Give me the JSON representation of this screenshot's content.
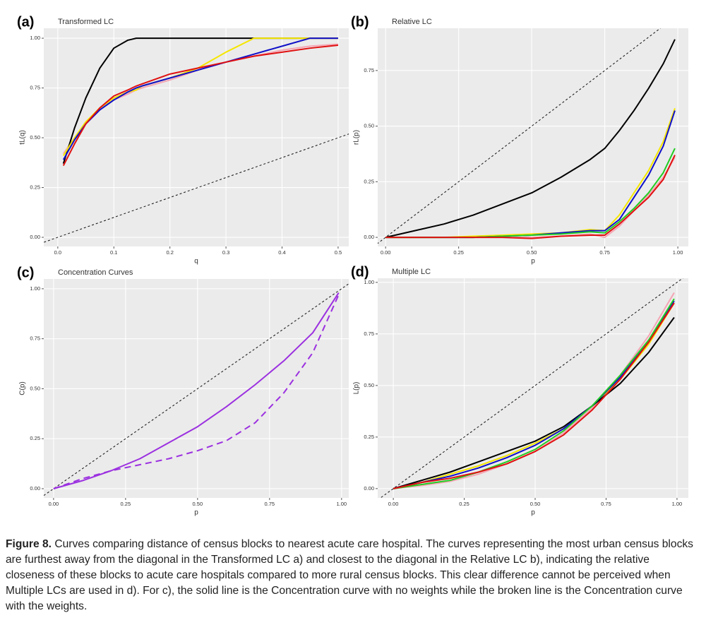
{
  "chart_data": [
    {
      "type": "line",
      "panel_label": "(a)",
      "title": "Transformed LC",
      "x_label": "q",
      "y_label": "tL(q)",
      "x": [
        0.01,
        0.03,
        0.05,
        0.075,
        0.1,
        0.125,
        0.14,
        0.15,
        0.2,
        0.25,
        0.3,
        0.35,
        0.4,
        0.45,
        0.5
      ],
      "series": [
        {
          "color": "#f4a6b4",
          "values": [
            0.42,
            0.5,
            0.57,
            0.64,
            0.69,
            0.72,
            0.74,
            0.75,
            0.79,
            0.84,
            0.88,
            0.91,
            0.94,
            0.96,
            0.97
          ]
        },
        {
          "color": "#000000",
          "values": [
            0.37,
            0.55,
            0.7,
            0.85,
            0.95,
            0.99,
            1.0,
            1.0,
            1.0,
            1.0,
            1.0,
            1.0,
            1.0,
            1.0,
            1.0
          ]
        },
        {
          "color": "#f5e600",
          "values": [
            0.41,
            0.5,
            0.58,
            0.65,
            0.7,
            0.73,
            0.74,
            0.76,
            0.8,
            0.85,
            0.93,
            1.0,
            1.0,
            1.0,
            1.0
          ]
        },
        {
          "color": "#1010c8",
          "values": [
            0.39,
            0.49,
            0.57,
            0.64,
            0.69,
            0.73,
            0.75,
            0.76,
            0.8,
            0.84,
            0.88,
            0.92,
            0.96,
            1.0,
            1.0
          ]
        },
        {
          "color": "#e01010",
          "values": [
            0.36,
            0.47,
            0.57,
            0.65,
            0.71,
            0.74,
            0.76,
            0.77,
            0.82,
            0.85,
            0.88,
            0.91,
            0.93,
            0.95,
            0.965
          ]
        }
      ],
      "xlim": [
        -0.025,
        0.519
      ],
      "ylim": [
        -0.046,
        1.05
      ],
      "xticks": [
        {
          "value": 0,
          "label": "0.0"
        },
        0.1,
        0.2,
        0.3,
        0.4,
        0.5
      ],
      "yticks": [
        {
          "value": 0,
          "label": "0.00"
        },
        {
          "value": 0.25,
          "label": "0.25"
        },
        {
          "value": 0.5,
          "label": "0.50"
        },
        {
          "value": 0.75,
          "label": "0.75"
        },
        {
          "value": 1,
          "label": "1.00"
        }
      ],
      "grid": true,
      "diagonal": true
    },
    {
      "type": "line",
      "panel_label": "(b)",
      "title": "Relative LC",
      "x_label": "p",
      "y_label": "rL(p)",
      "x": [
        0,
        0.1,
        0.2,
        0.3,
        0.4,
        0.5,
        0.6,
        0.7,
        0.75,
        0.8,
        0.85,
        0.9,
        0.95,
        0.99
      ],
      "series": [
        {
          "color": "#f4a6b4",
          "values": [
            0,
            0,
            0,
            0,
            0,
            0,
            0.005,
            0.015,
            0,
            0.05,
            0.12,
            0.19,
            0.27,
            0.36
          ]
        },
        {
          "color": "#000000",
          "values": [
            0,
            0.03,
            0.06,
            0.1,
            0.15,
            0.2,
            0.27,
            0.35,
            0.4,
            0.48,
            0.57,
            0.67,
            0.78,
            0.89
          ]
        },
        {
          "color": "#f5e600",
          "values": [
            0,
            0,
            0,
            0.005,
            0.01,
            0.015,
            0.02,
            0.035,
            0.03,
            0.1,
            0.2,
            0.3,
            0.43,
            0.58
          ]
        },
        {
          "color": "#1010c8",
          "values": [
            0,
            0,
            0,
            0,
            0.005,
            0.01,
            0.02,
            0.03,
            0.03,
            0.08,
            0.18,
            0.28,
            0.41,
            0.57
          ]
        },
        {
          "color": "#22cc22",
          "values": [
            0,
            0,
            0,
            0,
            0.005,
            0.01,
            0.015,
            0.025,
            0.02,
            0.07,
            0.13,
            0.2,
            0.29,
            0.4
          ]
        },
        {
          "color": "#e01010",
          "values": [
            0,
            0,
            0,
            0,
            0,
            -0.005,
            0.005,
            0.01,
            0.01,
            0.06,
            0.12,
            0.18,
            0.26,
            0.37
          ]
        }
      ],
      "xlim": [
        -0.027,
        1.036
      ],
      "ylim": [
        -0.041,
        0.94
      ],
      "xticks": [
        {
          "value": 0,
          "label": "0.00"
        },
        0.25,
        {
          "value": 0.5,
          "label": "0.50"
        },
        0.75,
        {
          "value": 1,
          "label": "1.00"
        }
      ],
      "yticks": [
        {
          "value": 0,
          "label": "0.00"
        },
        0.25,
        {
          "value": 0.5,
          "label": "0.50"
        },
        0.75
      ],
      "grid": true,
      "diagonal": true
    },
    {
      "type": "line",
      "panel_label": "(c)",
      "title": "Concentration Curves",
      "x_label": "p",
      "y_label": "C(p)",
      "x": [
        0,
        0.1,
        0.2,
        0.3,
        0.4,
        0.5,
        0.6,
        0.7,
        0.8,
        0.9,
        0.99
      ],
      "series": [
        {
          "color": "#9b30e0",
          "linestyle": "solid",
          "values": [
            0,
            0.04,
            0.09,
            0.15,
            0.23,
            0.31,
            0.41,
            0.52,
            0.64,
            0.78,
            0.98
          ]
        },
        {
          "color": "#9b30e0",
          "linestyle": "dashed",
          "values": [
            0,
            0.05,
            0.09,
            0.12,
            0.15,
            0.19,
            0.24,
            0.33,
            0.48,
            0.68,
            0.97
          ]
        }
      ],
      "xlim": [
        -0.034,
        1.025
      ],
      "ylim": [
        -0.046,
        1.049
      ],
      "xticks": [
        {
          "value": 0,
          "label": "0.00"
        },
        0.25,
        {
          "value": 0.5,
          "label": "0.50"
        },
        0.75,
        {
          "value": 1,
          "label": "1.00"
        }
      ],
      "yticks": [
        {
          "value": 0,
          "label": "0.00"
        },
        0.25,
        {
          "value": 0.5,
          "label": "0.50"
        },
        0.75,
        {
          "value": 1,
          "label": "1.00"
        }
      ],
      "grid": true,
      "diagonal": true
    },
    {
      "type": "line",
      "panel_label": "(d)",
      "title": "Multiple LC",
      "x_label": "p",
      "y_label": "L(p)",
      "x": [
        0,
        0.1,
        0.2,
        0.3,
        0.4,
        0.5,
        0.6,
        0.7,
        0.8,
        0.9,
        0.99
      ],
      "series": [
        {
          "color": "#f4a6b4",
          "values": [
            0,
            0.015,
            0.035,
            0.07,
            0.12,
            0.18,
            0.27,
            0.39,
            0.55,
            0.74,
            0.95
          ]
        },
        {
          "color": "#f5e600",
          "values": [
            0,
            0.03,
            0.07,
            0.11,
            0.16,
            0.22,
            0.29,
            0.4,
            0.53,
            0.7,
            0.9
          ]
        },
        {
          "color": "#000000",
          "values": [
            0,
            0.04,
            0.08,
            0.13,
            0.18,
            0.23,
            0.3,
            0.4,
            0.51,
            0.66,
            0.83
          ]
        },
        {
          "color": "#1010c8",
          "values": [
            0,
            0.03,
            0.06,
            0.1,
            0.15,
            0.21,
            0.29,
            0.4,
            0.54,
            0.71,
            0.91
          ]
        },
        {
          "color": "#22cc22",
          "values": [
            0,
            0.02,
            0.04,
            0.08,
            0.13,
            0.19,
            0.28,
            0.4,
            0.55,
            0.72,
            0.92
          ]
        },
        {
          "color": "#e01010",
          "values": [
            0,
            0.03,
            0.05,
            0.08,
            0.12,
            0.18,
            0.26,
            0.38,
            0.53,
            0.71,
            0.9
          ]
        }
      ],
      "xlim": [
        -0.055,
        1.04
      ],
      "ylim": [
        -0.045,
        1.02
      ],
      "xticks": [
        {
          "value": 0,
          "label": "0.00"
        },
        0.25,
        {
          "value": 0.5,
          "label": "0.50"
        },
        0.75,
        {
          "value": 1,
          "label": "1.00"
        }
      ],
      "yticks": [
        {
          "value": 0,
          "label": "0.00"
        },
        0.25,
        {
          "value": 0.5,
          "label": "0.50"
        },
        0.75,
        {
          "value": 1,
          "label": "1.00"
        }
      ],
      "grid": true,
      "diagonal": true
    }
  ],
  "caption": {
    "label": "Figure 8.",
    "text": "Curves comparing distance of census blocks to nearest acute care hospital. The curves representing the most urban census blocks are furthest away from the diagonal in the Transformed LC a) and closest to the diagonal in the Relative LC b), indicating the relative closeness of these blocks to acute care hospitals compared to more rural census blocks. This clear difference cannot be perceived when Multiple LCs are used in d). For c), the solid line is the Concentration curve with no weights while the broken line is the Concentration curve with the weights."
  }
}
